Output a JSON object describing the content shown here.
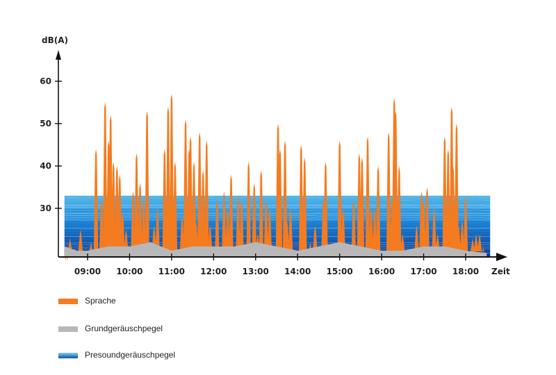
{
  "chart_data": {
    "type": "area",
    "title": "",
    "ylabel": "dB(A)",
    "xlabel": "Zeit",
    "ylim": [
      18,
      70
    ],
    "xlim": [
      "08:27",
      "18:35"
    ],
    "y_ticks": [
      30,
      40,
      50,
      60
    ],
    "x_ticks": [
      "09:00",
      "10:00",
      "11:00",
      "12:00",
      "13:00",
      "14:00",
      "15:00",
      "16:00",
      "17:00",
      "18:00"
    ],
    "grid": false,
    "legend_position": "bottom-left",
    "series": [
      {
        "name": "Sprache",
        "color": "#f47b20",
        "x": [
          "08:30",
          "08:35",
          "08:50",
          "09:05",
          "09:12",
          "09:20",
          "09:25",
          "09:30",
          "09:33",
          "09:37",
          "09:42",
          "09:46",
          "09:50",
          "09:55",
          "10:05",
          "10:10",
          "10:15",
          "10:20",
          "10:25",
          "10:35",
          "10:40",
          "10:50",
          "10:55",
          "11:00",
          "11:05",
          "11:15",
          "11:20",
          "11:25",
          "11:27",
          "11:32",
          "11:35",
          "11:40",
          "11:45",
          "11:50",
          "11:55",
          "12:05",
          "12:15",
          "12:20",
          "12:25",
          "12:35",
          "12:40",
          "12:50",
          "12:58",
          "13:03",
          "13:08",
          "13:15",
          "13:20",
          "13:32",
          "13:35",
          "13:42",
          "13:45",
          "13:50",
          "14:05",
          "14:10",
          "14:18",
          "14:25",
          "14:37",
          "14:40",
          "14:50",
          "15:00",
          "15:05",
          "15:20",
          "15:28",
          "15:32",
          "15:40",
          "15:45",
          "15:50",
          "15:55",
          "16:10",
          "16:15",
          "16:18",
          "16:20",
          "16:25",
          "16:30",
          "16:50",
          "16:57",
          "17:00",
          "17:05",
          "17:15",
          "17:20",
          "17:30",
          "17:35",
          "17:40",
          "17:42",
          "17:47",
          "17:50",
          "17:55",
          "18:00",
          "18:10",
          "18:15",
          "18:20",
          "18:25"
        ],
        "y": [
          19,
          23,
          25,
          22,
          44,
          32,
          55,
          46,
          52,
          41,
          40,
          38,
          29,
          25,
          34,
          43,
          36,
          32,
          53,
          26,
          30,
          44,
          54,
          57,
          41,
          28,
          51,
          44,
          47,
          41,
          27,
          48,
          39,
          46,
          26,
          32,
          34,
          30,
          38,
          33,
          32,
          41,
          36,
          24,
          39,
          32,
          30,
          50,
          44,
          46,
          27,
          30,
          45,
          42,
          22,
          26,
          32,
          41,
          20,
          46,
          30,
          32,
          43,
          42,
          47,
          30,
          30,
          40,
          48,
          32,
          56,
          53,
          40,
          24,
          26,
          34,
          32,
          35,
          30,
          24,
          47,
          44,
          54,
          40,
          50,
          26,
          27,
          33,
          23,
          24,
          24,
          21
        ]
      },
      {
        "name": "Grundgeräuschpegel",
        "color": "#b8b8b8",
        "x": [
          "08:27",
          "08:45",
          "09:00",
          "09:30",
          "10:00",
          "10:30",
          "11:00",
          "11:30",
          "12:00",
          "12:30",
          "13:00",
          "13:30",
          "14:00",
          "14:30",
          "15:00",
          "15:30",
          "16:00",
          "16:30",
          "17:00",
          "17:30",
          "18:00",
          "18:30"
        ],
        "y": [
          21,
          20,
          20,
          21,
          21,
          22,
          20,
          21,
          21,
          21,
          22,
          21,
          20,
          21,
          22,
          21,
          20,
          20,
          21,
          21,
          20,
          19.5
        ]
      },
      {
        "name": "Presoundgeräuschpegel",
        "color": "#1f7fd6",
        "x": [
          "08:27",
          "18:35"
        ],
        "y": [
          33,
          33
        ]
      }
    ],
    "arrow_color": "#111111"
  }
}
